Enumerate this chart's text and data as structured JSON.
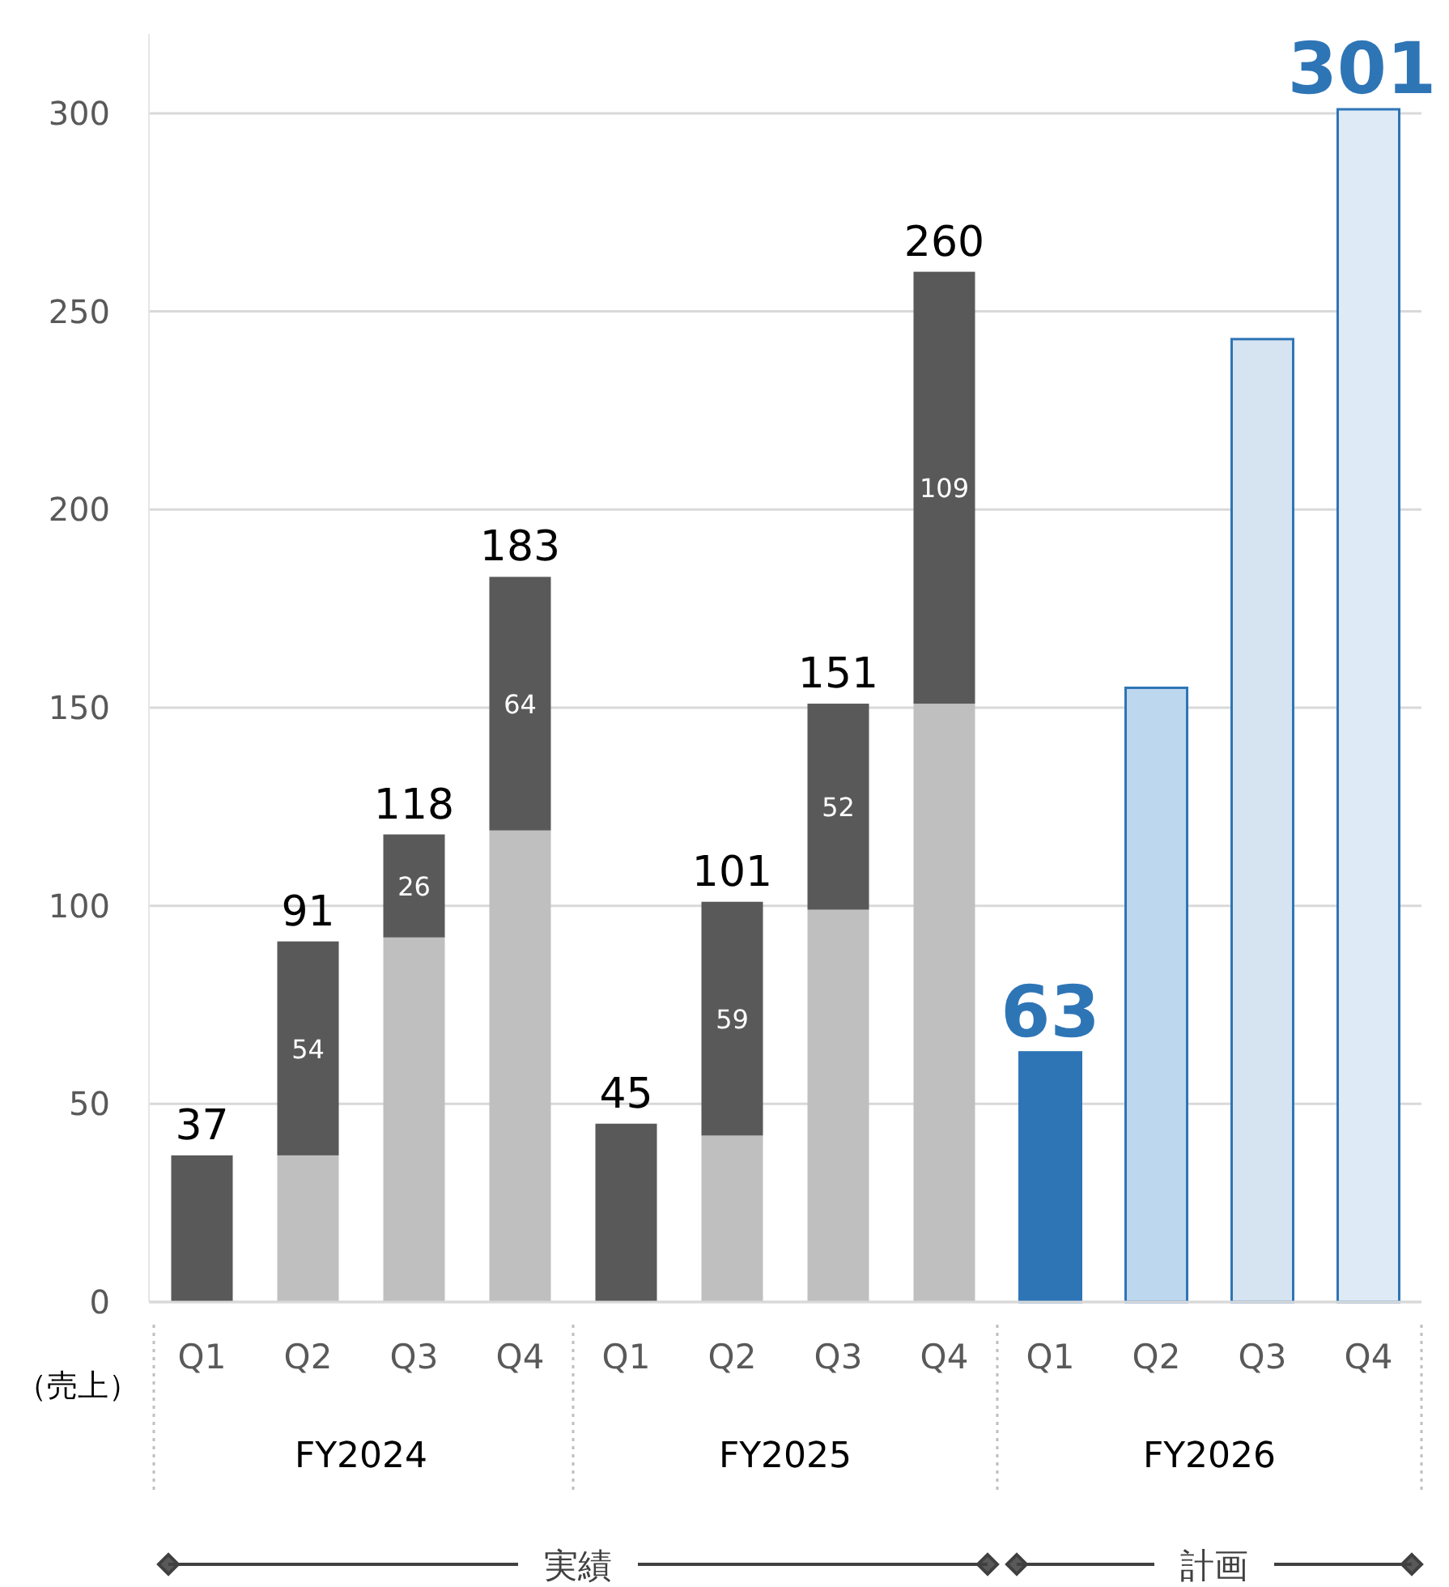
{
  "chart_data": {
    "type": "bar",
    "stacked": true,
    "ylabel": "（売上）",
    "categories": [
      "Q1",
      "Q2",
      "Q3",
      "Q4",
      "Q1",
      "Q2",
      "Q3",
      "Q4",
      "Q1",
      "Q2",
      "Q3",
      "Q4"
    ],
    "series": [
      {
        "color": "#bfbfbf",
        "values": [
          null,
          37,
          92,
          119,
          null,
          42,
          99,
          151,
          null,
          null,
          null,
          null
        ]
      },
      {
        "color": "#595959",
        "values": [
          37,
          54,
          26,
          64,
          45,
          59,
          52,
          109,
          null,
          null,
          null,
          null
        ],
        "value_labels": [
          null,
          "54",
          "26",
          "64",
          null,
          "59",
          "52",
          "109",
          null,
          null,
          null,
          null
        ]
      },
      {
        "color": "#2e75b6",
        "colors": [
          null,
          null,
          null,
          null,
          null,
          null,
          null,
          null,
          "#2e75b6",
          "#bdd7ee",
          "#d6e4f2",
          "#deebf7"
        ],
        "values": [
          null,
          null,
          null,
          null,
          null,
          null,
          null,
          null,
          63,
          155,
          243,
          301
        ]
      }
    ],
    "totals": [
      "37",
      "91",
      "118",
      "183",
      "45",
      "101",
      "151",
      "260",
      "63",
      null,
      null,
      "301"
    ],
    "ylim": [
      0,
      320
    ],
    "yticks": [
      0,
      50,
      100,
      150,
      200,
      250,
      300
    ],
    "grid": "y",
    "annotations": [
      "FY2024",
      "FY2025",
      "FY2026",
      "実績",
      "計画"
    ]
  }
}
